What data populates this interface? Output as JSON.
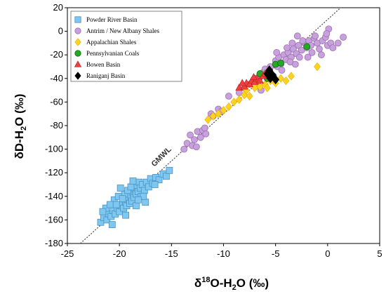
{
  "chart_data": {
    "type": "scatter",
    "xlabel": "δ18O-H2O (‰)",
    "xlabel_parts": {
      "pre": "δ",
      "sup": "18",
      "mid": "O-H",
      "sub": "2",
      "post": "O (‰)"
    },
    "ylabel": "δD-H2O (‰)",
    "ylabel_parts": {
      "pre": "δD-H",
      "sub": "2",
      "post": "O (‰)"
    },
    "xlim": [
      -25,
      5
    ],
    "ylim": [
      -180,
      20
    ],
    "xticks": [
      "-25",
      "-20",
      "-15",
      "-10",
      "-5",
      "0",
      "5"
    ],
    "xtick_values": [
      -25,
      -20,
      -15,
      -10,
      -5,
      0,
      5
    ],
    "yticks": [
      "20",
      "0",
      "-20",
      "-40",
      "-60",
      "-80",
      "-100",
      "-120",
      "-140",
      "-160",
      "-180"
    ],
    "ytick_values": [
      20,
      0,
      -20,
      -40,
      -60,
      -80,
      -100,
      -120,
      -140,
      -160,
      -180
    ],
    "grid": false,
    "legend_position": "top-left",
    "reference_line": {
      "label": "GMWL",
      "slope": 8,
      "intercept": 10,
      "style": "dotted",
      "color": "#555555"
    },
    "series": [
      {
        "name": "Powder River Basin",
        "marker": "square",
        "color": "#7ec8ef",
        "stroke": "#4a90c8",
        "points": [
          [
            -21.8,
            -162
          ],
          [
            -21.5,
            -158
          ],
          [
            -21.2,
            -160
          ],
          [
            -21,
            -155
          ],
          [
            -20.8,
            -157
          ],
          [
            -20.6,
            -152
          ],
          [
            -20.4,
            -155
          ],
          [
            -20.2,
            -150
          ],
          [
            -20,
            -153
          ],
          [
            -19.8,
            -148
          ],
          [
            -19.6,
            -150
          ],
          [
            -19.4,
            -145
          ],
          [
            -19.3,
            -148
          ],
          [
            -19.1,
            -143
          ],
          [
            -19,
            -146
          ],
          [
            -18.9,
            -140
          ],
          [
            -18.8,
            -144
          ],
          [
            -18.7,
            -137
          ],
          [
            -18.6,
            -141
          ],
          [
            -18.5,
            -134
          ],
          [
            -18.4,
            -138
          ],
          [
            -18.3,
            -131
          ],
          [
            -18.2,
            -136
          ],
          [
            -18.1,
            -128
          ],
          [
            -18,
            -133
          ],
          [
            -17.9,
            -140
          ],
          [
            -17.8,
            -130
          ],
          [
            -17.6,
            -135
          ],
          [
            -17.4,
            -128
          ],
          [
            -17.2,
            -132
          ],
          [
            -17,
            -125
          ],
          [
            -16.8,
            -129
          ],
          [
            -16.5,
            -124
          ],
          [
            -16.2,
            -126
          ],
          [
            -15.8,
            -121
          ],
          [
            -15.5,
            -123
          ],
          [
            -15.2,
            -118
          ],
          [
            -19.5,
            -138
          ],
          [
            -19.2,
            -135
          ],
          [
            -18.9,
            -132
          ],
          [
            -20.5,
            -143
          ],
          [
            -20.1,
            -140
          ],
          [
            -19.7,
            -142
          ],
          [
            -21.3,
            -150
          ],
          [
            -20.9,
            -147
          ],
          [
            -17.5,
            -145
          ],
          [
            -18.4,
            -148
          ],
          [
            -19.4,
            -156
          ],
          [
            -20.7,
            -164
          ],
          [
            -21.6,
            -153
          ],
          [
            -18.7,
            -127
          ],
          [
            -17.7,
            -140
          ],
          [
            -16.6,
            -130
          ],
          [
            -19.9,
            -133
          ],
          [
            -20.3,
            -147
          ],
          [
            -18.2,
            -143
          ]
        ]
      },
      {
        "name": "Antrim / New Albany Shales",
        "marker": "circle",
        "color": "#c8a0dc",
        "stroke": "#9a70b4",
        "points": [
          [
            -13.5,
            -95
          ],
          [
            -13.2,
            -88
          ],
          [
            -13,
            -97
          ],
          [
            -12.8,
            -92
          ],
          [
            -12.5,
            -85
          ],
          [
            -12.2,
            -90
          ],
          [
            -12,
            -84
          ],
          [
            -11.7,
            -87
          ],
          [
            -13.8,
            -100
          ],
          [
            -12.6,
            -98
          ],
          [
            -11.8,
            -82
          ],
          [
            -11.2,
            -70
          ],
          [
            -11,
            -72
          ],
          [
            -10.5,
            -66
          ],
          [
            -10.2,
            -68
          ],
          [
            -8.5,
            -52
          ],
          [
            -8,
            -48
          ],
          [
            -7.5,
            -45
          ],
          [
            -7,
            -40
          ],
          [
            -6.8,
            -43
          ],
          [
            -6.5,
            -38
          ],
          [
            -6.2,
            -35
          ],
          [
            -6,
            -32
          ],
          [
            -5.5,
            -30
          ],
          [
            -5,
            -25
          ],
          [
            -4.7,
            -22
          ],
          [
            -4.5,
            -28
          ],
          [
            -4.2,
            -20
          ],
          [
            -4,
            -24
          ],
          [
            -3.8,
            -18
          ],
          [
            -3.5,
            -22
          ],
          [
            -3.3,
            -15
          ],
          [
            -3,
            -19
          ],
          [
            -2.8,
            -12
          ],
          [
            -2.5,
            -16
          ],
          [
            -2.2,
            -10
          ],
          [
            -2,
            -14
          ],
          [
            -1.8,
            -8
          ],
          [
            -1.6,
            -12
          ],
          [
            -1.3,
            -6
          ],
          [
            -1,
            -10
          ],
          [
            -0.8,
            -15
          ],
          [
            -0.5,
            -8
          ],
          [
            -0.2,
            -5
          ],
          [
            0,
            -12
          ],
          [
            0.3,
            -10
          ],
          [
            1,
            -10
          ],
          [
            1.5,
            -5
          ],
          [
            0.1,
            2
          ],
          [
            -0.1,
            -2
          ],
          [
            -2.7,
            -22
          ],
          [
            -3.6,
            -26
          ],
          [
            -4.8,
            -30
          ],
          [
            -5.8,
            -36
          ],
          [
            -6.7,
            -46
          ],
          [
            -1.5,
            -18
          ],
          [
            -2.4,
            -8
          ],
          [
            -3.9,
            -14
          ],
          [
            -5.2,
            -38
          ],
          [
            -4.4,
            -33
          ],
          [
            -9.5,
            -55
          ],
          [
            -6.4,
            -50
          ],
          [
            -3.1,
            -28
          ],
          [
            -1.2,
            -4
          ],
          [
            -0.6,
            -20
          ],
          [
            -2.9,
            -4
          ],
          [
            0.5,
            -14
          ],
          [
            -1.9,
            -22
          ],
          [
            -3.4,
            -10
          ],
          [
            -4.9,
            -18
          ]
        ]
      },
      {
        "name": "Appalachian Shales",
        "marker": "diamond",
        "color": "#ffd21e",
        "stroke": "#e0b000",
        "points": [
          [
            -11.5,
            -75
          ],
          [
            -11,
            -72
          ],
          [
            -10.5,
            -70
          ],
          [
            -10,
            -67
          ],
          [
            -9.5,
            -64
          ],
          [
            -9,
            -60
          ],
          [
            -8.5,
            -58
          ],
          [
            -8,
            -54
          ],
          [
            -7.5,
            -55
          ],
          [
            -7,
            -48
          ],
          [
            -6.5,
            -47
          ],
          [
            -6,
            -45
          ],
          [
            -5.5,
            -42
          ],
          [
            -5,
            -44
          ],
          [
            -4.5,
            -40
          ],
          [
            -4,
            -42
          ],
          [
            -3.5,
            -38
          ],
          [
            -1,
            -30
          ],
          [
            -7.8,
            -50
          ],
          [
            -6.8,
            -43
          ],
          [
            -5.8,
            -48
          ]
        ]
      },
      {
        "name": "Pennsylvanian Coals",
        "marker": "circle",
        "color": "#22aa22",
        "stroke": "#116611",
        "points": [
          [
            -6.5,
            -36
          ],
          [
            -5,
            -28
          ],
          [
            -4.5,
            -27
          ],
          [
            -2,
            -13
          ],
          [
            -5.8,
            -40
          ]
        ]
      },
      {
        "name": "Bowen Basin",
        "marker": "triangle",
        "color": "#ee4040",
        "stroke": "#c01818",
        "points": [
          [
            -8.5,
            -48
          ],
          [
            -8,
            -47
          ],
          [
            -7.8,
            -44
          ],
          [
            -7.5,
            -45
          ],
          [
            -7.3,
            -42
          ],
          [
            -7,
            -43
          ],
          [
            -6.8,
            -40
          ],
          [
            -6.5,
            -42
          ],
          [
            -6.2,
            -38
          ],
          [
            -6,
            -36
          ],
          [
            -5.7,
            -37
          ],
          [
            -8.2,
            -44
          ],
          [
            -7.1,
            -39
          ]
        ]
      },
      {
        "name": "Raniganj Basin",
        "marker": "diamond",
        "color": "#000000",
        "stroke": "#000000",
        "points": [
          [
            -5.8,
            -36
          ],
          [
            -5.5,
            -40
          ],
          [
            -5.3,
            -37
          ],
          [
            -5,
            -41
          ],
          [
            -5.6,
            -33
          ]
        ]
      }
    ]
  }
}
